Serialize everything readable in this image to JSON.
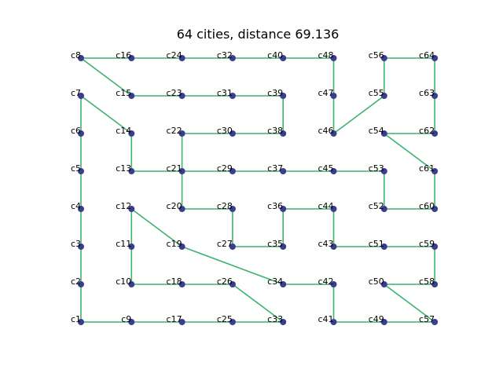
{
  "chart_data": {
    "type": "scatter",
    "title": "64 cities, distance 69.136",
    "xlabel": "",
    "ylabel": "",
    "grid": false,
    "axes_visible": false,
    "colors": {
      "point": "#3b3e8a",
      "route": "#3cb371",
      "text": "#000000"
    },
    "cities": [
      {
        "label": "c1",
        "x": 0,
        "y": 0
      },
      {
        "label": "c2",
        "x": 0,
        "y": 1
      },
      {
        "label": "c3",
        "x": 0,
        "y": 2
      },
      {
        "label": "c4",
        "x": 0,
        "y": 3
      },
      {
        "label": "c5",
        "x": 0,
        "y": 4
      },
      {
        "label": "c6",
        "x": 0,
        "y": 5
      },
      {
        "label": "c7",
        "x": 0,
        "y": 6
      },
      {
        "label": "c8",
        "x": 0,
        "y": 7
      },
      {
        "label": "c9",
        "x": 1,
        "y": 0
      },
      {
        "label": "c10",
        "x": 1,
        "y": 1
      },
      {
        "label": "c11",
        "x": 1,
        "y": 2
      },
      {
        "label": "c12",
        "x": 1,
        "y": 3
      },
      {
        "label": "c13",
        "x": 1,
        "y": 4
      },
      {
        "label": "c14",
        "x": 1,
        "y": 5
      },
      {
        "label": "c15",
        "x": 1,
        "y": 6
      },
      {
        "label": "c16",
        "x": 1,
        "y": 7
      },
      {
        "label": "c17",
        "x": 2,
        "y": 0
      },
      {
        "label": "c18",
        "x": 2,
        "y": 1
      },
      {
        "label": "c19",
        "x": 2,
        "y": 2
      },
      {
        "label": "c20",
        "x": 2,
        "y": 3
      },
      {
        "label": "c21",
        "x": 2,
        "y": 4
      },
      {
        "label": "c22",
        "x": 2,
        "y": 5
      },
      {
        "label": "c23",
        "x": 2,
        "y": 6
      },
      {
        "label": "c24",
        "x": 2,
        "y": 7
      },
      {
        "label": "c25",
        "x": 3,
        "y": 0
      },
      {
        "label": "c26",
        "x": 3,
        "y": 1
      },
      {
        "label": "c27",
        "x": 3,
        "y": 2
      },
      {
        "label": "c28",
        "x": 3,
        "y": 3
      },
      {
        "label": "c29",
        "x": 3,
        "y": 4
      },
      {
        "label": "c30",
        "x": 3,
        "y": 5
      },
      {
        "label": "c31",
        "x": 3,
        "y": 6
      },
      {
        "label": "c32",
        "x": 3,
        "y": 7
      },
      {
        "label": "c33",
        "x": 4,
        "y": 0
      },
      {
        "label": "c34",
        "x": 4,
        "y": 1
      },
      {
        "label": "c35",
        "x": 4,
        "y": 2
      },
      {
        "label": "c36",
        "x": 4,
        "y": 3
      },
      {
        "label": "c37",
        "x": 4,
        "y": 4
      },
      {
        "label": "c38",
        "x": 4,
        "y": 5
      },
      {
        "label": "c39",
        "x": 4,
        "y": 6
      },
      {
        "label": "c40",
        "x": 4,
        "y": 7
      },
      {
        "label": "c41",
        "x": 5,
        "y": 0
      },
      {
        "label": "c42",
        "x": 5,
        "y": 1
      },
      {
        "label": "c43",
        "x": 5,
        "y": 2
      },
      {
        "label": "c44",
        "x": 5,
        "y": 3
      },
      {
        "label": "c45",
        "x": 5,
        "y": 4
      },
      {
        "label": "c46",
        "x": 5,
        "y": 5
      },
      {
        "label": "c47",
        "x": 5,
        "y": 6
      },
      {
        "label": "c48",
        "x": 5,
        "y": 7
      },
      {
        "label": "c49",
        "x": 6,
        "y": 0
      },
      {
        "label": "c50",
        "x": 6,
        "y": 1
      },
      {
        "label": "c51",
        "x": 6,
        "y": 2
      },
      {
        "label": "c52",
        "x": 6,
        "y": 3
      },
      {
        "label": "c53",
        "x": 6,
        "y": 4
      },
      {
        "label": "c54",
        "x": 6,
        "y": 5
      },
      {
        "label": "c55",
        "x": 6,
        "y": 6
      },
      {
        "label": "c56",
        "x": 6,
        "y": 7
      },
      {
        "label": "c57",
        "x": 7,
        "y": 0
      },
      {
        "label": "c58",
        "x": 7,
        "y": 1
      },
      {
        "label": "c59",
        "x": 7,
        "y": 2
      },
      {
        "label": "c60",
        "x": 7,
        "y": 3
      },
      {
        "label": "c61",
        "x": 7,
        "y": 4
      },
      {
        "label": "c62",
        "x": 7,
        "y": 5
      },
      {
        "label": "c63",
        "x": 7,
        "y": 6
      },
      {
        "label": "c64",
        "x": 7,
        "y": 7
      }
    ],
    "route": [
      "c1",
      "c9",
      "c17",
      "c25",
      "c33",
      "c26",
      "c18",
      "c10",
      "c11",
      "c12",
      "c19",
      "c34",
      "c42",
      "c41",
      "c49",
      "c57",
      "c50",
      "c58",
      "c59",
      "c51",
      "c43",
      "c44",
      "c36",
      "c35",
      "c27",
      "c28",
      "c20",
      "c21",
      "c22",
      "c30",
      "c38",
      "c39",
      "c31",
      "c23",
      "c15",
      "c8",
      "c16",
      "c24",
      "c32",
      "c40",
      "c48",
      "c47",
      "c46",
      "c55",
      "c56",
      "c64",
      "c63",
      "c62",
      "c54",
      "c61",
      "c60",
      "c52",
      "c53",
      "c45",
      "c37",
      "c29",
      "c13",
      "c14",
      "c7",
      "c6",
      "c5",
      "c4",
      "c3",
      "c2",
      "c1"
    ]
  }
}
